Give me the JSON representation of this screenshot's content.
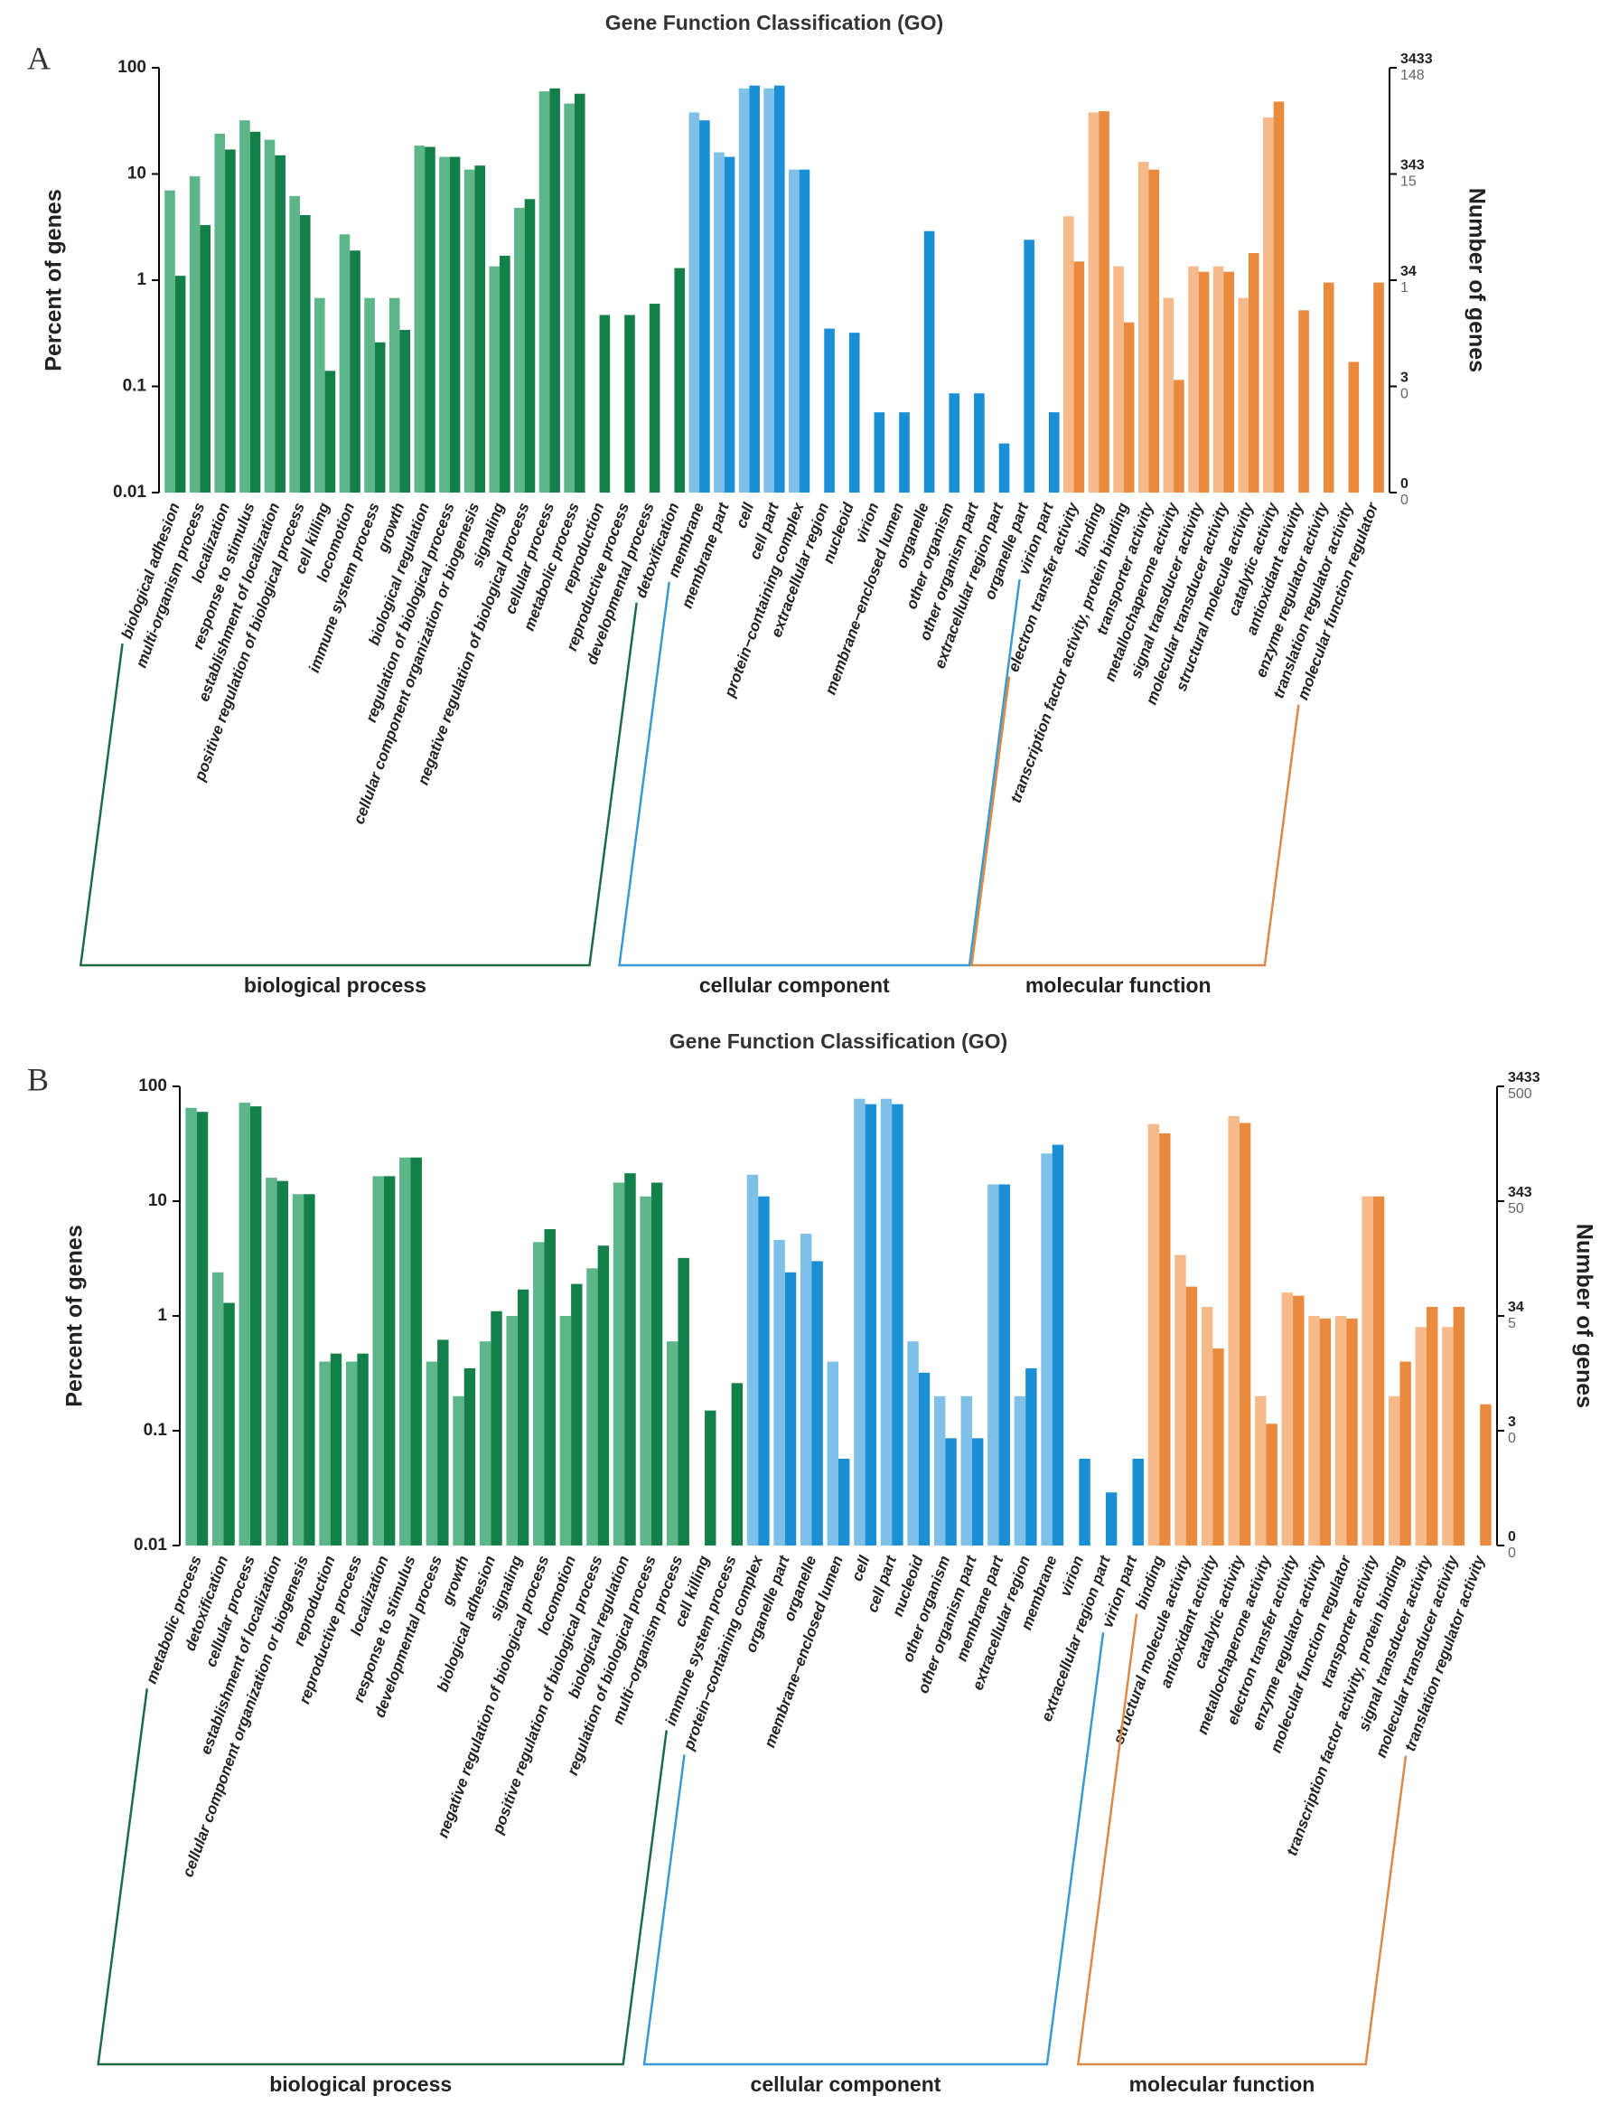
{
  "chart_data": [
    {
      "type": "bar",
      "panel": "A",
      "title": "Gene Function Classification (GO)",
      "ylabel": "Percent of genes",
      "y2label": "Number of genes",
      "log": true,
      "ylim": [
        0.01,
        100
      ],
      "yticks": [
        100,
        10,
        1,
        0.1,
        0.01
      ],
      "y2ticks": [
        {
          "value": 100,
          "label": "3433"
        },
        {
          "value": 10,
          "label": "343"
        },
        {
          "value": 1,
          "label": "34"
        },
        {
          "value": 0.1,
          "label": "3"
        },
        {
          "value": 0.01,
          "label": "0"
        }
      ],
      "y2ticks2": [
        {
          "value": 100,
          "label": "148"
        },
        {
          "value": 10,
          "label": "15"
        },
        {
          "value": 1,
          "label": "1"
        },
        {
          "value": 0.1,
          "label": "0"
        },
        {
          "value": 0.01,
          "label": "0"
        }
      ],
      "groups": [
        {
          "label": "biological process",
          "color": "#1e6b45",
          "categories": [
            "biological adhesion",
            "multi-organism process",
            "localization",
            "response to stimulus",
            "establishment of localization",
            "positive regulation of biological process",
            "cell killing",
            "locomotion",
            "immune system process",
            "growth",
            "biological regulation",
            "regulation of biological process",
            "cellular component organization or biogenesis",
            "signaling",
            "negative regulation of biological process",
            "cellular process",
            "metabolic process",
            "reproduction",
            "reproductive process",
            "developmental process",
            "detoxification"
          ],
          "series": [
            {
              "color": "#5db58a",
              "values": [
                7,
                9.5,
                24,
                32,
                21,
                6.2,
                0.68,
                2.7,
                0.68,
                0.68,
                18.5,
                14.5,
                11,
                1.35,
                4.8,
                60,
                46,
                null,
                null,
                null,
                null
              ]
            },
            {
              "color": "#13804a",
              "values": [
                1.1,
                3.3,
                17,
                25,
                15,
                4.1,
                0.14,
                1.9,
                0.26,
                0.34,
                18,
                14.5,
                12,
                1.7,
                5.8,
                64,
                57,
                0.47,
                0.47,
                0.6,
                1.3
              ]
            }
          ]
        },
        {
          "label": "cellular component",
          "color": "#3a9ad0",
          "categories": [
            "membrane",
            "membrane part",
            "cell",
            "cell part",
            "protein−containing complex",
            "extracellular region",
            "nucleoid",
            "virion",
            "membrane−enclosed lumen",
            "organelle",
            "other organism",
            "other organism part",
            "extracellular region part",
            "organelle part",
            "virion part"
          ],
          "series": [
            {
              "color": "#7ec0e8",
              "values": [
                38,
                16,
                64,
                64,
                11,
                null,
                null,
                null,
                null,
                null,
                null,
                null,
                null,
                null,
                null
              ]
            },
            {
              "color": "#1a8fd6",
              "values": [
                32,
                14.5,
                68,
                68,
                11,
                0.35,
                0.32,
                0.057,
                0.057,
                2.9,
                0.086,
                0.086,
                0.029,
                2.4,
                0.057
              ]
            }
          ]
        },
        {
          "label": "molecular function",
          "color": "#d9894a",
          "categories": [
            "electron transfer activity",
            "binding",
            "transcription factor activity, protein binding",
            "transporter activity",
            "metallochaperone activity",
            "signal transducer activity",
            "molecular transducer activity",
            "structural molecule activity",
            "catalytic activity",
            "antioxidant activity",
            "enzyme regulator activity",
            "translation regulator activity",
            "molecular function regulator"
          ],
          "series": [
            {
              "color": "#f5b98a",
              "values": [
                4,
                38,
                1.35,
                13,
                0.68,
                1.35,
                1.35,
                0.68,
                34,
                null,
                null,
                null,
                null
              ]
            },
            {
              "color": "#ea8a3e",
              "values": [
                1.5,
                39,
                0.4,
                11,
                0.115,
                1.2,
                1.2,
                1.8,
                48,
                0.52,
                0.95,
                0.17,
                0.95
              ]
            }
          ]
        }
      ]
    },
    {
      "type": "bar",
      "panel": "B",
      "title": "Gene Function Classification (GO)",
      "ylabel": "Percent of genes",
      "y2label": "Number of genes",
      "log": true,
      "ylim": [
        0.01,
        100
      ],
      "yticks": [
        100,
        10,
        1,
        0.1,
        0.01
      ],
      "y2ticks": [
        {
          "value": 100,
          "label": "3433"
        },
        {
          "value": 10,
          "label": "343"
        },
        {
          "value": 1,
          "label": "34"
        },
        {
          "value": 0.1,
          "label": "3"
        },
        {
          "value": 0.01,
          "label": "0"
        }
      ],
      "y2ticks2": [
        {
          "value": 100,
          "label": "500"
        },
        {
          "value": 10,
          "label": "50"
        },
        {
          "value": 1,
          "label": "5"
        },
        {
          "value": 0.1,
          "label": "0"
        },
        {
          "value": 0.01,
          "label": "0"
        }
      ],
      "groups": [
        {
          "label": "biological process",
          "color": "#1e6b45",
          "categories": [
            "metabolic process",
            "detoxification",
            "cellular process",
            "establishment of localization",
            "cellular component organization or biogenesis",
            "reproduction",
            "reproductive process",
            "localization",
            "response to stimulus",
            "developmental process",
            "growth",
            "biological adhesion",
            "signaling",
            "negative regulation of biological process",
            "locomotion",
            "positive regulation of biological process",
            "biological regulation",
            "regulation of biological process",
            "multi−organism process",
            "cell killing",
            "immune system process"
          ],
          "series": [
            {
              "color": "#5db58a",
              "values": [
                65,
                2.4,
                72,
                16,
                11.5,
                0.4,
                0.4,
                16.5,
                24,
                0.4,
                0.2,
                0.6,
                1.0,
                4.4,
                1.0,
                2.6,
                14.5,
                11,
                0.6,
                null,
                null
              ]
            },
            {
              "color": "#13804a",
              "values": [
                60,
                1.3,
                67,
                15,
                11.5,
                0.47,
                0.47,
                16.5,
                24,
                0.62,
                0.35,
                1.1,
                1.7,
                5.7,
                1.9,
                4.1,
                17.5,
                14.5,
                3.2,
                0.15,
                0.26
              ]
            }
          ]
        },
        {
          "label": "cellular component",
          "color": "#3a9ad0",
          "categories": [
            "protein−containing complex",
            "organelle part",
            "organelle",
            "membrane−enclosed lumen",
            "cell",
            "cell part",
            "nucleoid",
            "other organism",
            "other organism part",
            "membrane part",
            "extracellular region",
            "membrane",
            "virion",
            "extracellular region part",
            "virion part"
          ],
          "series": [
            {
              "color": "#7ec0e8",
              "values": [
                17,
                4.6,
                5.2,
                0.4,
                78,
                78,
                0.6,
                0.2,
                0.2,
                14,
                0.2,
                26,
                null,
                null,
                null
              ]
            },
            {
              "color": "#1a8fd6",
              "values": [
                11,
                2.4,
                3.0,
                0.057,
                70,
                70,
                0.32,
                0.086,
                0.086,
                14,
                0.35,
                31,
                0.057,
                0.029,
                0.057
              ]
            }
          ]
        },
        {
          "label": "molecular function",
          "color": "#d9894a",
          "categories": [
            "binding",
            "structural molecule activity",
            "antioxidant activity",
            "catalytic activity",
            "metallochaperone activity",
            "electron transfer activity",
            "enzyme regulator activity",
            "molecular function regulator",
            "transporter activity",
            "transcription factor activity, protein binding",
            "signal transducer activity",
            "molecular transducer activity",
            "translation regulator activity"
          ],
          "series": [
            {
              "color": "#f5b98a",
              "values": [
                47,
                3.4,
                1.2,
                55,
                0.2,
                1.6,
                1.0,
                1.0,
                11,
                0.2,
                0.8,
                0.8,
                null
              ]
            },
            {
              "color": "#ea8a3e",
              "values": [
                39,
                1.8,
                0.52,
                48,
                0.115,
                1.5,
                0.95,
                0.95,
                11,
                0.4,
                1.2,
                1.2,
                0.17
              ]
            }
          ]
        }
      ]
    }
  ]
}
